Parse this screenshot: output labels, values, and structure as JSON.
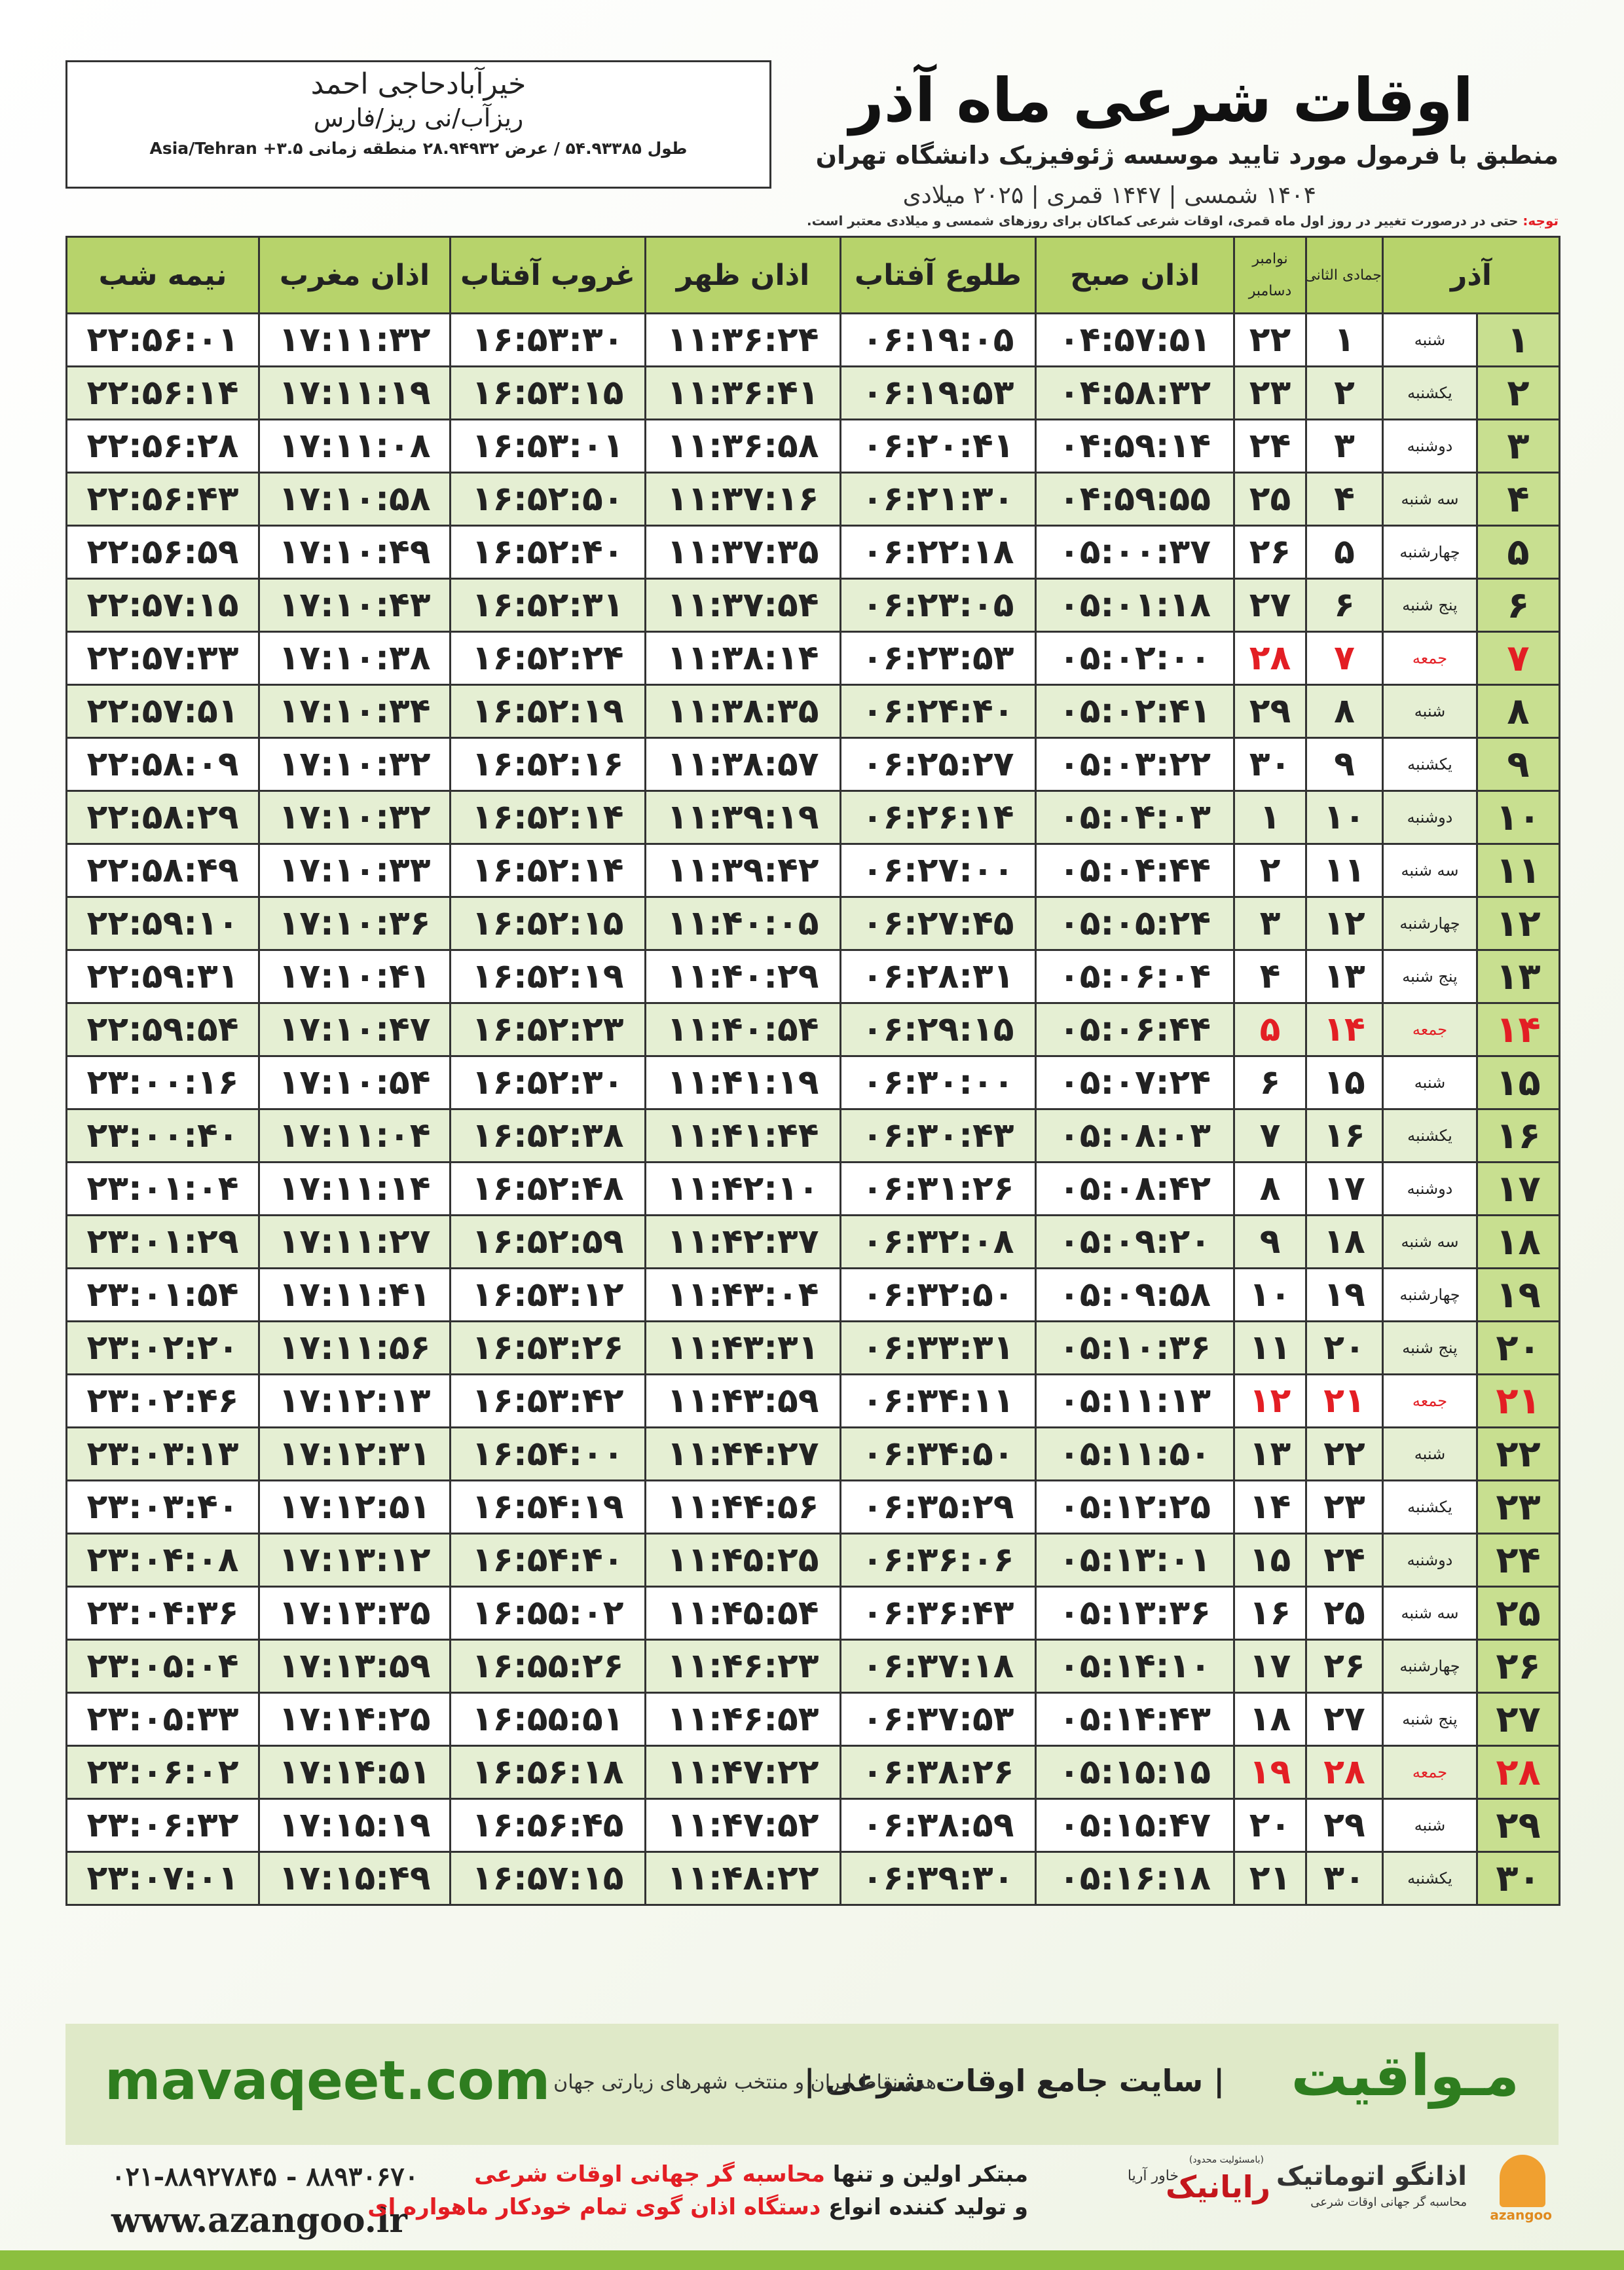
{
  "header": {
    "title": "اوقات شرعی ماه آذر",
    "subtitle": "منطبق با فرمول مورد تایید موسسه ژئوفیزیک دانشگاه تهران",
    "dateline": "۱۴۰۴ شمسی | ۱۴۴۷ قمری | ۲۰۲۵ میلادی"
  },
  "location": {
    "name": "خیرآبادحاجی احمد",
    "region": "ریزآب/نی ریز/فارس",
    "coords": "طول ۵۴.۹۳۳۸۵ / عرض ۲۸.۹۴۹۳۲ منطقه زمانی ۳.۵+ Asia/Tehran"
  },
  "note": {
    "label": "توجه:",
    "text": "حتی در درصورت تغییر در روز اول ماه قمری، اوقات شرعی کماکان برای روزهای شمسی و میلادی معتبر است."
  },
  "table": {
    "header": {
      "month": "آذر",
      "hijri_month": "جمادی الثانی",
      "gregorian_months": [
        "نوامبر",
        "دسامبر"
      ],
      "times": [
        "اذان صبح",
        "طلوع آفتاب",
        "اذان ظهر",
        "غروب آفتاب",
        "اذان مغرب",
        "نیمه شب"
      ]
    },
    "holiday_color": "#e31e24",
    "rows": [
      {
        "cells": [
          "۱",
          "شنبه",
          "۱",
          "۲۲",
          "۰۴:۵۷:۵۱",
          "۰۶:۱۹:۰۵",
          "۱۱:۳۶:۲۴",
          "۱۶:۵۳:۳۰",
          "۱۷:۱۱:۳۲",
          "۲۲:۵۶:۰۱"
        ]
      },
      {
        "cells": [
          "۲",
          "یکشنبه",
          "۲",
          "۲۳",
          "۰۴:۵۸:۳۲",
          "۰۶:۱۹:۵۳",
          "۱۱:۳۶:۴۱",
          "۱۶:۵۳:۱۵",
          "۱۷:۱۱:۱۹",
          "۲۲:۵۶:۱۴"
        ]
      },
      {
        "cells": [
          "۳",
          "دوشنبه",
          "۳",
          "۲۴",
          "۰۴:۵۹:۱۴",
          "۰۶:۲۰:۴۱",
          "۱۱:۳۶:۵۸",
          "۱۶:۵۳:۰۱",
          "۱۷:۱۱:۰۸",
          "۲۲:۵۶:۲۸"
        ]
      },
      {
        "cells": [
          "۴",
          "سه شنبه",
          "۴",
          "۲۵",
          "۰۴:۵۹:۵۵",
          "۰۶:۲۱:۳۰",
          "۱۱:۳۷:۱۶",
          "۱۶:۵۲:۵۰",
          "۱۷:۱۰:۵۸",
          "۲۲:۵۶:۴۳"
        ]
      },
      {
        "cells": [
          "۵",
          "چهارشنبه",
          "۵",
          "۲۶",
          "۰۵:۰۰:۳۷",
          "۰۶:۲۲:۱۸",
          "۱۱:۳۷:۳۵",
          "۱۶:۵۲:۴۰",
          "۱۷:۱۰:۴۹",
          "۲۲:۵۶:۵۹"
        ]
      },
      {
        "cells": [
          "۶",
          "پنج شنبه",
          "۶",
          "۲۷",
          "۰۵:۰۱:۱۸",
          "۰۶:۲۳:۰۵",
          "۱۱:۳۷:۵۴",
          "۱۶:۵۲:۳۱",
          "۱۷:۱۰:۴۳",
          "۲۲:۵۷:۱۵"
        ]
      },
      {
        "cells": [
          "۷",
          "جمعه",
          "۷",
          "۲۸",
          "۰۵:۰۲:۰۰",
          "۰۶:۲۳:۵۳",
          "۱۱:۳۸:۱۴",
          "۱۶:۵۲:۲۴",
          "۱۷:۱۰:۳۸",
          "۲۲:۵۷:۳۳"
        ],
        "holiday": true
      },
      {
        "cells": [
          "۸",
          "شنبه",
          "۸",
          "۲۹",
          "۰۵:۰۲:۴۱",
          "۰۶:۲۴:۴۰",
          "۱۱:۳۸:۳۵",
          "۱۶:۵۲:۱۹",
          "۱۷:۱۰:۳۴",
          "۲۲:۵۷:۵۱"
        ]
      },
      {
        "cells": [
          "۹",
          "یکشنبه",
          "۹",
          "۳۰",
          "۰۵:۰۳:۲۲",
          "۰۶:۲۵:۲۷",
          "۱۱:۳۸:۵۷",
          "۱۶:۵۲:۱۶",
          "۱۷:۱۰:۳۲",
          "۲۲:۵۸:۰۹"
        ]
      },
      {
        "cells": [
          "۱۰",
          "دوشنبه",
          "۱۰",
          "۱",
          "۰۵:۰۴:۰۳",
          "۰۶:۲۶:۱۴",
          "۱۱:۳۹:۱۹",
          "۱۶:۵۲:۱۴",
          "۱۷:۱۰:۳۲",
          "۲۲:۵۸:۲۹"
        ]
      },
      {
        "cells": [
          "۱۱",
          "سه شنبه",
          "۱۱",
          "۲",
          "۰۵:۰۴:۴۴",
          "۰۶:۲۷:۰۰",
          "۱۱:۳۹:۴۲",
          "۱۶:۵۲:۱۴",
          "۱۷:۱۰:۳۳",
          "۲۲:۵۸:۴۹"
        ]
      },
      {
        "cells": [
          "۱۲",
          "چهارشنبه",
          "۱۲",
          "۳",
          "۰۵:۰۵:۲۴",
          "۰۶:۲۷:۴۵",
          "۱۱:۴۰:۰۵",
          "۱۶:۵۲:۱۵",
          "۱۷:۱۰:۳۶",
          "۲۲:۵۹:۱۰"
        ]
      },
      {
        "cells": [
          "۱۳",
          "پنج شنبه",
          "۱۳",
          "۴",
          "۰۵:۰۶:۰۴",
          "۰۶:۲۸:۳۱",
          "۱۱:۴۰:۲۹",
          "۱۶:۵۲:۱۹",
          "۱۷:۱۰:۴۱",
          "۲۲:۵۹:۳۱"
        ]
      },
      {
        "cells": [
          "۱۴",
          "جمعه",
          "۱۴",
          "۵",
          "۰۵:۰۶:۴۴",
          "۰۶:۲۹:۱۵",
          "۱۱:۴۰:۵۴",
          "۱۶:۵۲:۲۳",
          "۱۷:۱۰:۴۷",
          "۲۲:۵۹:۵۴"
        ],
        "holiday": true
      },
      {
        "cells": [
          "۱۵",
          "شنبه",
          "۱۵",
          "۶",
          "۰۵:۰۷:۲۴",
          "۰۶:۳۰:۰۰",
          "۱۱:۴۱:۱۹",
          "۱۶:۵۲:۳۰",
          "۱۷:۱۰:۵۴",
          "۲۳:۰۰:۱۶"
        ]
      },
      {
        "cells": [
          "۱۶",
          "یکشنبه",
          "۱۶",
          "۷",
          "۰۵:۰۸:۰۳",
          "۰۶:۳۰:۴۳",
          "۱۱:۴۱:۴۴",
          "۱۶:۵۲:۳۸",
          "۱۷:۱۱:۰۴",
          "۲۳:۰۰:۴۰"
        ]
      },
      {
        "cells": [
          "۱۷",
          "دوشنبه",
          "۱۷",
          "۸",
          "۰۵:۰۸:۴۲",
          "۰۶:۳۱:۲۶",
          "۱۱:۴۲:۱۰",
          "۱۶:۵۲:۴۸",
          "۱۷:۱۱:۱۴",
          "۲۳:۰۱:۰۴"
        ]
      },
      {
        "cells": [
          "۱۸",
          "سه شنبه",
          "۱۸",
          "۹",
          "۰۵:۰۹:۲۰",
          "۰۶:۳۲:۰۸",
          "۱۱:۴۲:۳۷",
          "۱۶:۵۲:۵۹",
          "۱۷:۱۱:۲۷",
          "۲۳:۰۱:۲۹"
        ]
      },
      {
        "cells": [
          "۱۹",
          "چهارشنبه",
          "۱۹",
          "۱۰",
          "۰۵:۰۹:۵۸",
          "۰۶:۳۲:۵۰",
          "۱۱:۴۳:۰۴",
          "۱۶:۵۳:۱۲",
          "۱۷:۱۱:۴۱",
          "۲۳:۰۱:۵۴"
        ]
      },
      {
        "cells": [
          "۲۰",
          "پنج شنبه",
          "۲۰",
          "۱۱",
          "۰۵:۱۰:۳۶",
          "۰۶:۳۳:۳۱",
          "۱۱:۴۳:۳۱",
          "۱۶:۵۳:۲۶",
          "۱۷:۱۱:۵۶",
          "۲۳:۰۲:۲۰"
        ]
      },
      {
        "cells": [
          "۲۱",
          "جمعه",
          "۲۱",
          "۱۲",
          "۰۵:۱۱:۱۳",
          "۰۶:۳۴:۱۱",
          "۱۱:۴۳:۵۹",
          "۱۶:۵۳:۴۲",
          "۱۷:۱۲:۱۳",
          "۲۳:۰۲:۴۶"
        ],
        "holiday": true
      },
      {
        "cells": [
          "۲۲",
          "شنبه",
          "۲۲",
          "۱۳",
          "۰۵:۱۱:۵۰",
          "۰۶:۳۴:۵۰",
          "۱۱:۴۴:۲۷",
          "۱۶:۵۴:۰۰",
          "۱۷:۱۲:۳۱",
          "۲۳:۰۳:۱۳"
        ]
      },
      {
        "cells": [
          "۲۳",
          "یکشنبه",
          "۲۳",
          "۱۴",
          "۰۵:۱۲:۲۵",
          "۰۶:۳۵:۲۹",
          "۱۱:۴۴:۵۶",
          "۱۶:۵۴:۱۹",
          "۱۷:۱۲:۵۱",
          "۲۳:۰۳:۴۰"
        ]
      },
      {
        "cells": [
          "۲۴",
          "دوشنبه",
          "۲۴",
          "۱۵",
          "۰۵:۱۳:۰۱",
          "۰۶:۳۶:۰۶",
          "۱۱:۴۵:۲۵",
          "۱۶:۵۴:۴۰",
          "۱۷:۱۳:۱۲",
          "۲۳:۰۴:۰۸"
        ]
      },
      {
        "cells": [
          "۲۵",
          "سه شنبه",
          "۲۵",
          "۱۶",
          "۰۵:۱۳:۳۶",
          "۰۶:۳۶:۴۳",
          "۱۱:۴۵:۵۴",
          "۱۶:۵۵:۰۲",
          "۱۷:۱۳:۳۵",
          "۲۳:۰۴:۳۶"
        ]
      },
      {
        "cells": [
          "۲۶",
          "چهارشنبه",
          "۲۶",
          "۱۷",
          "۰۵:۱۴:۱۰",
          "۰۶:۳۷:۱۸",
          "۱۱:۴۶:۲۳",
          "۱۶:۵۵:۲۶",
          "۱۷:۱۳:۵۹",
          "۲۳:۰۵:۰۴"
        ]
      },
      {
        "cells": [
          "۲۷",
          "پنج شنبه",
          "۲۷",
          "۱۸",
          "۰۵:۱۴:۴۳",
          "۰۶:۳۷:۵۳",
          "۱۱:۴۶:۵۳",
          "۱۶:۵۵:۵۱",
          "۱۷:۱۴:۲۵",
          "۲۳:۰۵:۳۳"
        ]
      },
      {
        "cells": [
          "۲۸",
          "جمعه",
          "۲۸",
          "۱۹",
          "۰۵:۱۵:۱۵",
          "۰۶:۳۸:۲۶",
          "۱۱:۴۷:۲۲",
          "۱۶:۵۶:۱۸",
          "۱۷:۱۴:۵۱",
          "۲۳:۰۶:۰۲"
        ],
        "holiday": true
      },
      {
        "cells": [
          "۲۹",
          "شنبه",
          "۲۹",
          "۲۰",
          "۰۵:۱۵:۴۷",
          "۰۶:۳۸:۵۹",
          "۱۱:۴۷:۵۲",
          "۱۶:۵۶:۴۵",
          "۱۷:۱۵:۱۹",
          "۲۳:۰۶:۳۲"
        ]
      },
      {
        "cells": [
          "۳۰",
          "یکشنبه",
          "۳۰",
          "۲۱",
          "۰۵:۱۶:۱۸",
          "۰۶:۳۹:۳۰",
          "۱۱:۴۸:۲۲",
          "۱۶:۵۷:۱۵",
          "۱۷:۱۵:۴۹",
          "۲۳:۰۷:۰۱"
        ]
      }
    ]
  },
  "banner": {
    "site": "mavaqeet.com",
    "brand": "مـواقیت",
    "tagline": "| سایت جامع اوقات شرعی |",
    "scope": "همه نقاط ایران و منتخب شهرهای زیارتی جهان"
  },
  "footer": {
    "phone": "۰۲۱-۸۸۹۲۷۸۴۵ - ۸۸۹۳۰۶۷۰",
    "website": "www.azangoo.ir",
    "line1": [
      "مبتکر اولین و تنها ",
      "محاسبه گر جهانی اوقات شرعی"
    ],
    "line2": [
      "و تولید کننده انواع ",
      "دستگاه اذان گوی تمام خودکار ماهواره ای"
    ],
    "logos": {
      "azangoo": "اذانگو اتوماتیک",
      "azangoo_sub": "محاسبه گر جهانی اوقات شرعی",
      "azangoo_latin": "azangoo",
      "rayanik": "رایانیک",
      "khavar": "خاور آریا",
      "limited": "(بامسئولیت محدود)"
    }
  }
}
